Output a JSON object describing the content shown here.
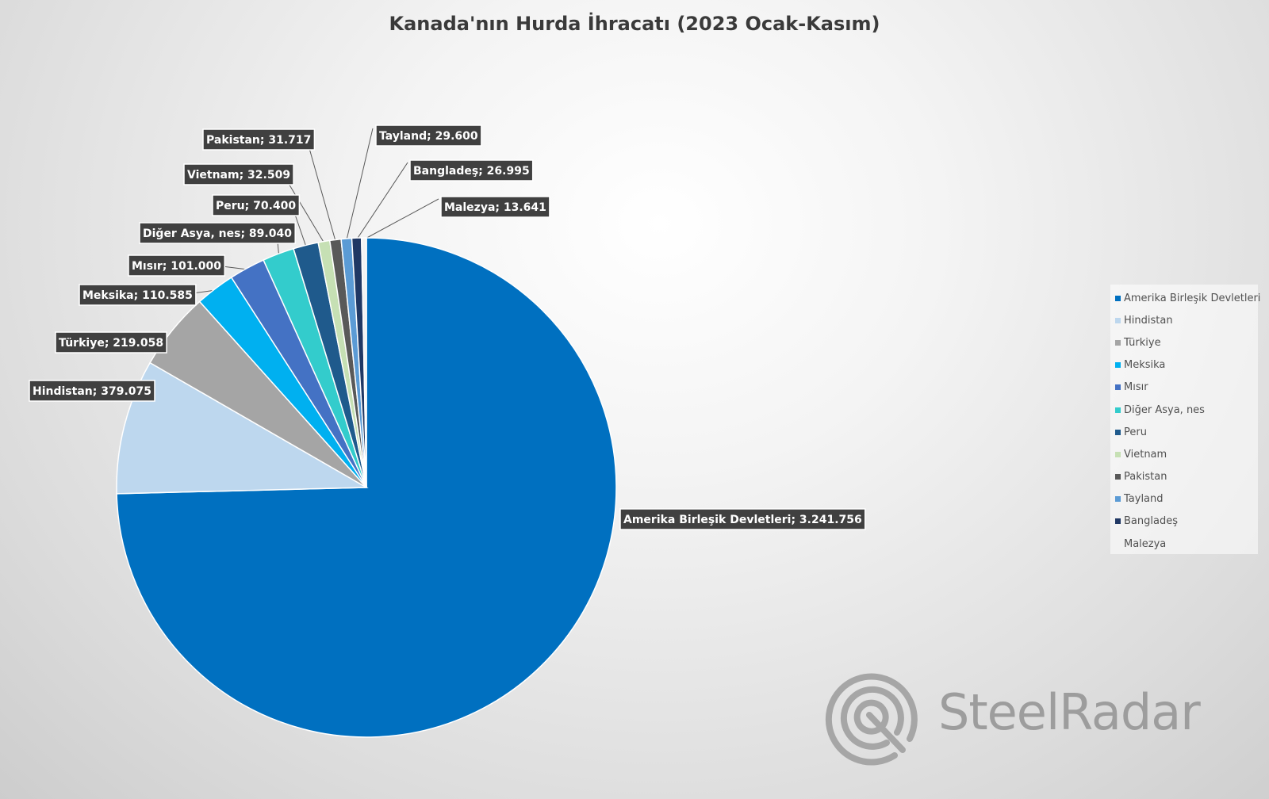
{
  "chart_data": {
    "type": "pie",
    "title": "Kanada'nın Hurda İhracatı (2023 Ocak-Kasım)",
    "legend_position": "right",
    "slices": [
      {
        "name": "Amerika Birleşik Devletleri",
        "value": 3241756,
        "label": "Amerika Birleşik Devletleri; 3.241.756",
        "color": "#0070c0"
      },
      {
        "name": "Hindistan",
        "value": 379075,
        "label": "Hindistan; 379.075",
        "color": "#bdd7ee"
      },
      {
        "name": "Türkiye",
        "value": 219058,
        "label": "Türkiye; 219.058",
        "color": "#a5a5a5"
      },
      {
        "name": "Meksika",
        "value": 110585,
        "label": "Meksika; 110.585",
        "color": "#00b0f0"
      },
      {
        "name": "Mısır",
        "value": 101000,
        "label": "Mısır; 101.000",
        "color": "#4472c4"
      },
      {
        "name": "Diğer Asya, nes",
        "value": 89040,
        "label": "Diğer Asya, nes; 89.040",
        "color": "#33cccc"
      },
      {
        "name": "Peru",
        "value": 70400,
        "label": "Peru; 70.400",
        "color": "#1f5a8c"
      },
      {
        "name": "Vietnam",
        "value": 32509,
        "label": "Vietnam; 32.509",
        "color": "#c6e0b4"
      },
      {
        "name": "Pakistan",
        "value": 31717,
        "label": "Pakistan; 31.717",
        "color": "#595959"
      },
      {
        "name": "Tayland",
        "value": 29600,
        "label": "Tayland; 29.600",
        "color": "#5b9bd5"
      },
      {
        "name": "Bangladeş",
        "value": 26995,
        "label": "Bangladeş; 26.995",
        "color": "#203864"
      },
      {
        "name": "Malezya",
        "value": 13641,
        "label": "Malezya; 13.641",
        "color": "#f2f2f2"
      }
    ]
  },
  "watermark": {
    "text": "SteelRadar"
  }
}
